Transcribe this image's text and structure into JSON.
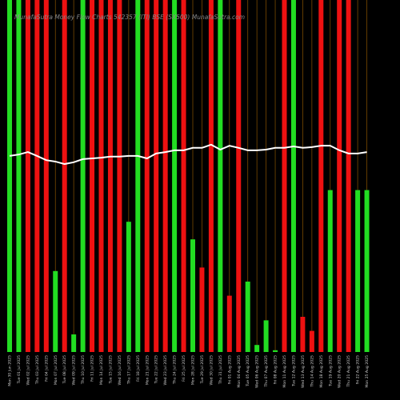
{
  "chart_data": {
    "type": "bar",
    "title": "MunafaSutra Money Flow Charts 542357 (ITI) BSE (SX500) MunafaSutra.com",
    "categories": [
      "Mon 30 Jun 2025",
      "Tue 01 Jul 2025",
      "Wed 02 Jul 2025",
      "Thu 03 Jul 2025",
      "Fri 04 Jul 2025",
      "Mon 07 Jul 2025",
      "Tue 08 Jul 2025",
      "Wed 09 Jul 2025",
      "Thu 10 Jul 2025",
      "Fri 11 Jul 2025",
      "Mon 14 Jul 2025",
      "Tue 15 Jul 2025",
      "Wed 16 Jul 2025",
      "Thu 17 Jul 2025",
      "Fri 18 Jul 2025",
      "Mon 21 Jul 2025",
      "Tue 22 Jul 2025",
      "Wed 23 Jul 2025",
      "Thu 24 Jul 2025",
      "Fri 25 Jul 2025",
      "Mon 28 Jul 2025",
      "Tue 29 Jul 2025",
      "Wed 30 Jul 2025",
      "Thu 31 Jul 2025",
      "Fri 01 Aug 2025",
      "Mon 04 Aug 2025",
      "Tue 05 Aug 2025",
      "Wed 06 Aug 2025",
      "Thu 07 Aug 2025",
      "Fri 08 Aug 2025",
      "Mon 11 Aug 2025",
      "Tue 12 Aug 2025",
      "Wed 13 Aug 2025",
      "Thu 14 Aug 2025",
      "Mon 18 Aug 2025",
      "Tue 19 Aug 2025",
      "Wed 20 Aug 2025",
      "Thu 21 Aug 2025",
      "Fri 22 Aug 2025",
      "Mon 25 Aug 2025"
    ],
    "values": [
      100,
      100,
      100,
      100,
      100,
      23,
      100,
      5,
      100,
      100,
      100,
      100,
      100,
      37,
      100,
      100,
      100,
      100,
      100,
      100,
      32,
      24,
      100,
      100,
      16,
      100,
      20,
      2,
      9,
      0.5,
      100,
      100,
      10,
      6,
      100,
      46,
      100,
      100,
      46,
      46
    ],
    "colors": [
      "#22dd22",
      "#22dd22",
      "#ee1111",
      "#ee1111",
      "#ee1111",
      "#22dd22",
      "#ee1111",
      "#22dd22",
      "#22dd22",
      "#ee1111",
      "#ee1111",
      "#ee1111",
      "#ee1111",
      "#22dd22",
      "#22dd22",
      "#ee1111",
      "#ee1111",
      "#ee1111",
      "#22dd22",
      "#ee1111",
      "#22dd22",
      "#ee1111",
      "#ee1111",
      "#22dd22",
      "#ee1111",
      "#ee1111",
      "#22dd22",
      "#22dd22",
      "#22dd22",
      "#22dd22",
      "#ee1111",
      "#22dd22",
      "#ee1111",
      "#ee1111",
      "#ee1111",
      "#22dd22",
      "#ee1111",
      "#ee1111",
      "#22dd22",
      "#22dd22"
    ],
    "line": {
      "color": "#ffffff",
      "values": [
        55.7,
        56.1,
        56.8,
        55.7,
        54.5,
        54.1,
        53.4,
        53.9,
        54.8,
        55.0,
        55.2,
        55.5,
        55.5,
        55.7,
        55.7,
        55.0,
        56.4,
        56.8,
        57.3,
        57.3,
        58.0,
        58.0,
        58.9,
        57.5,
        58.6,
        58.0,
        57.3,
        57.3,
        57.5,
        58.0,
        58.0,
        58.4,
        58.0,
        58.2,
        58.6,
        58.6,
        57.3,
        56.4,
        56.4,
        56.8
      ]
    },
    "ylim": [
      0,
      100
    ],
    "grid": true,
    "grid_color": "#7a4a00"
  }
}
